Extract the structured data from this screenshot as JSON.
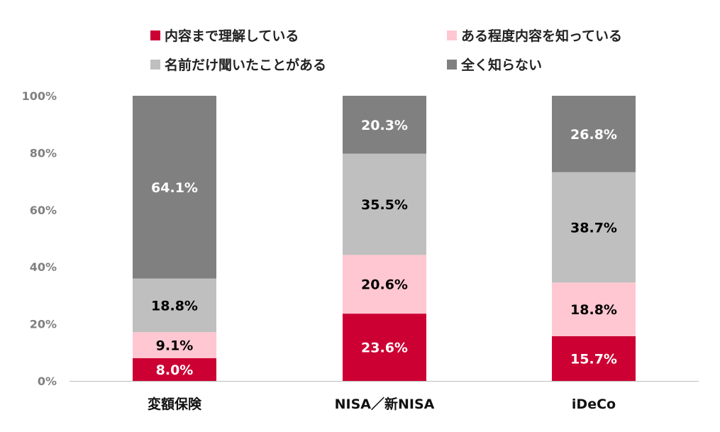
{
  "chart_data": {
    "type": "bar",
    "stacked": true,
    "categories": [
      "変額保険",
      "NISA／新NISA",
      "iDeCo"
    ],
    "series": [
      {
        "name": "内容まで理解している",
        "color": "#CC0033",
        "label_color": "#FFFFFF",
        "values": [
          8.0,
          23.6,
          15.7
        ]
      },
      {
        "name": "ある程度内容を知っている",
        "color": "#FFC7D1",
        "label_color": "#000000",
        "values": [
          9.1,
          20.6,
          18.8
        ]
      },
      {
        "name": "名前だけ聞いたことがある",
        "color": "#BFBFBF",
        "label_color": "#000000",
        "values": [
          18.8,
          35.5,
          38.7
        ]
      },
      {
        "name": "全く知らない",
        "color": "#808080",
        "label_color": "#FFFFFF",
        "values": [
          64.1,
          20.3,
          26.8
        ]
      }
    ],
    "yticks": [
      "0%",
      "20%",
      "40%",
      "60%",
      "80%",
      "100%"
    ],
    "ylim": [
      0,
      100
    ],
    "grid": false,
    "legend_position": "top",
    "xlabel": "",
    "ylabel": ""
  }
}
